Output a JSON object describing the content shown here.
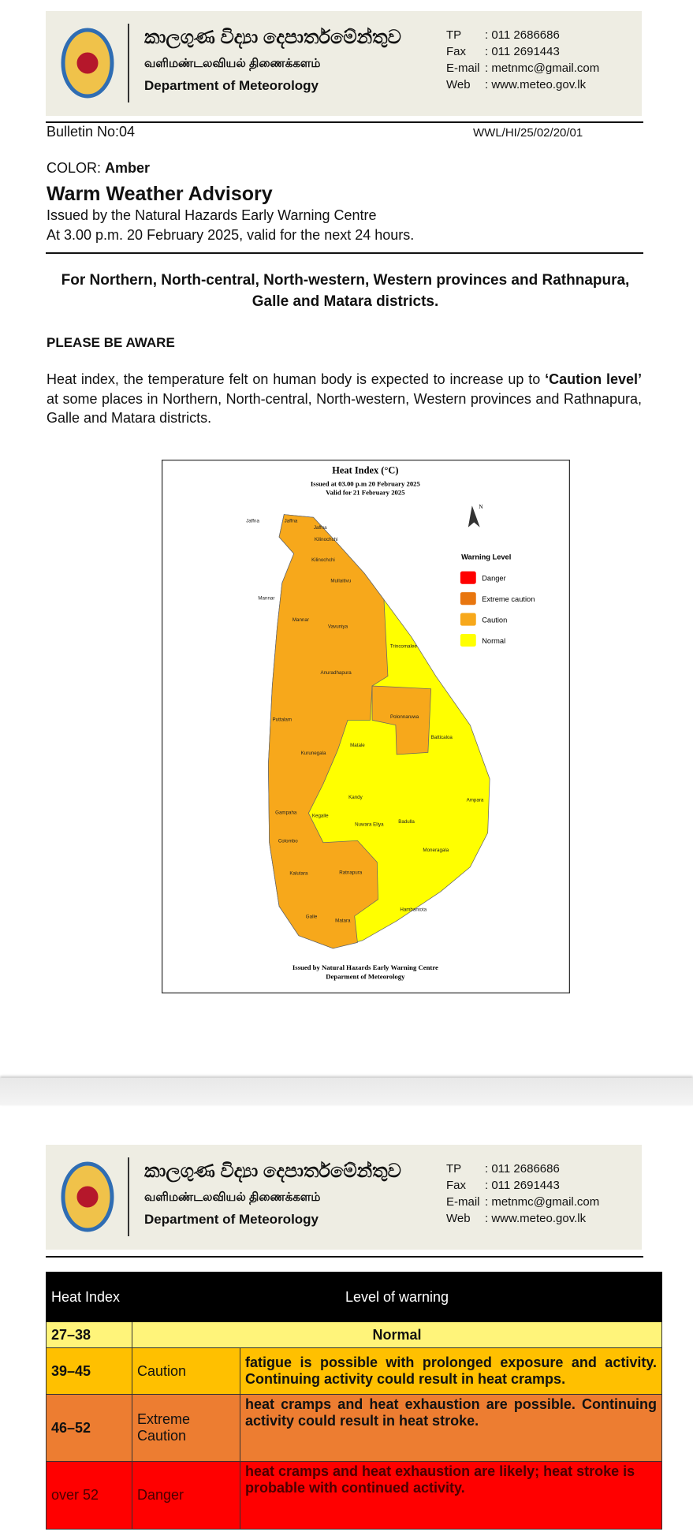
{
  "header": {
    "sinhala": "කාලගුණ විද්‍යා දෙපාර්තමේන්තුව",
    "tamil": "வளிமண்டலவியல் திணைக்களம்",
    "english": "Department of Meteorology",
    "contacts": [
      {
        "label": "TP",
        "value": ": 011 2686686"
      },
      {
        "label": "Fax",
        "value": ": 011 2691443"
      },
      {
        "label": "E-mail",
        "value": ": metnmc@gmail.com"
      },
      {
        "label": "Web",
        "value": ": www.meteo.gov.lk"
      }
    ]
  },
  "bulletin": {
    "number": "Bulletin No:04",
    "reference": "WWL/HI/25/02/20/01",
    "color_label": "COLOR:",
    "color": "Amber",
    "title": "Warm Weather Advisory",
    "issued_by": "Issued by the Natural Hazards Early Warning Centre",
    "issued_at": "At 3.00 p.m. 20 February 2025, valid for the next 24 hours.",
    "areas": "For Northern, North-central, North-western, Western provinces and Rathnapura, Galle and Matara districts.",
    "aware": "PLEASE BE AWARE",
    "body": [
      "Heat index, the temperature felt on human body is expected to increase up to ",
      "‘Caution level’",
      " at some places in Northern, North-central, North-western, Western provinces and Rathnapura, Galle and Matara districts."
    ]
  },
  "map": {
    "title": "Heat Index (°C)",
    "issued": "Issued at 03.00 p.m 20 February 2025",
    "valid": "Valid for 21 February 2025",
    "north": "N",
    "legend_title": "Warning Level",
    "legend": [
      {
        "name": "Danger",
        "color": "#ff0000"
      },
      {
        "name": "Extreme caution",
        "color": "#e8760f"
      },
      {
        "name": "Caution",
        "color": "#f7a81b"
      },
      {
        "name": "Normal",
        "color": "#ffff00"
      }
    ],
    "districts": [
      "Jaffna",
      "Jaffna",
      "Jaffna",
      "Kilinochchi",
      "Kilinochchi",
      "Mullaitivu",
      "Mannar",
      "Mannar",
      "Vavuniya",
      "Trincomalee",
      "Anuradhapura",
      "Polonnaruwa",
      "Puttalam",
      "Batticaloa",
      "Matale",
      "Kurunegala",
      "Kandy",
      "Ampara",
      "Gampaha",
      "Kegalle",
      "Nuwara Eliya",
      "Badulla",
      "Colombo",
      "Moneragala",
      "Kalutara",
      "Ratnapura",
      "Hambantota",
      "Galle",
      "Matara"
    ],
    "footer": [
      "Issued by Natural Hazards Early Warning Centre",
      "Deparment of Meteorology"
    ]
  },
  "table": {
    "header": [
      "Heat Index",
      "Level of warning"
    ],
    "rows": [
      [
        "27–38",
        "Normal"
      ],
      [
        "39–45",
        "Caution",
        "fatigue is possible with prolonged exposure and activity. Continuing activity could result in heat cramps."
      ],
      [
        "46–52",
        "Extreme Caution",
        "heat cramps and heat exhaustion are possible. Continuing activity could result in heat stroke."
      ],
      [
        "over 52",
        "Danger",
        "heat cramps and heat exhaustion are likely; heat stroke is probable with continued activity."
      ]
    ]
  }
}
